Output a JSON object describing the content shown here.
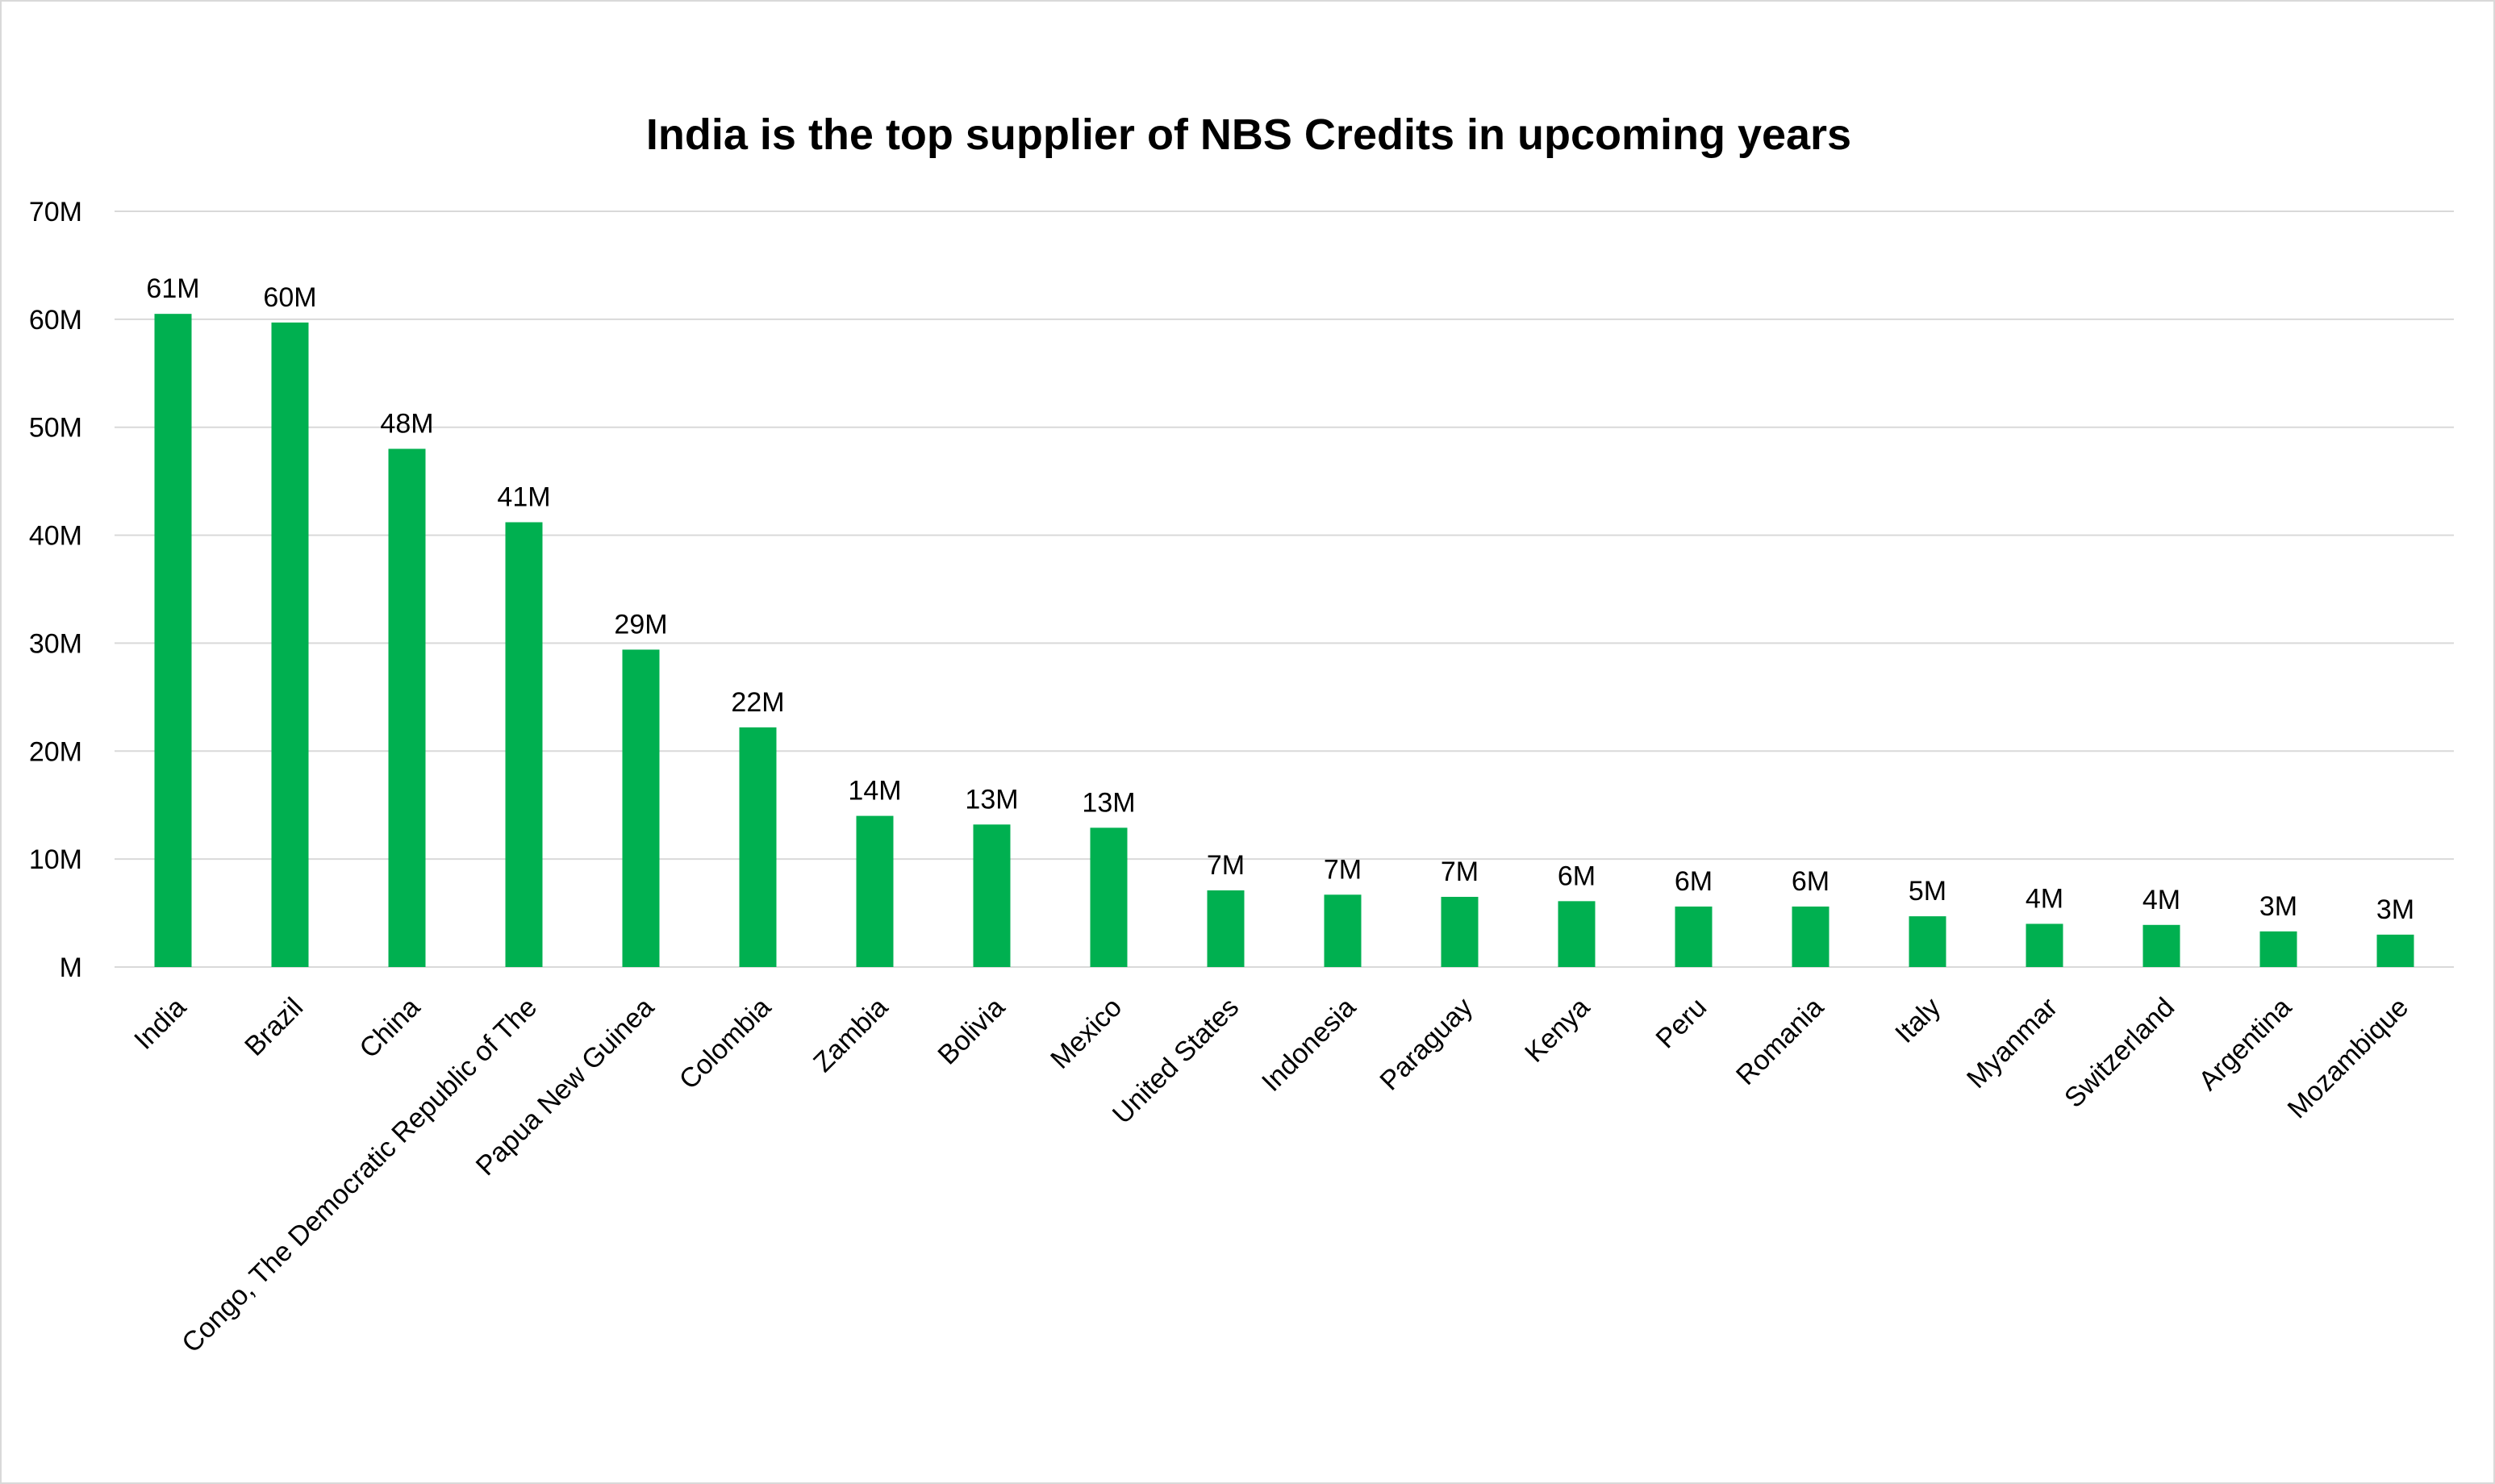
{
  "chart_data": {
    "type": "bar",
    "title": "India is the top supplier of NBS Credits in upcoming years",
    "xlabel": "",
    "ylabel": "",
    "ylim": [
      0,
      70
    ],
    "y_ticks": [
      {
        "value": 0,
        "label": "M"
      },
      {
        "value": 10,
        "label": "10M"
      },
      {
        "value": 20,
        "label": "20M"
      },
      {
        "value": 30,
        "label": "30M"
      },
      {
        "value": 40,
        "label": "40M"
      },
      {
        "value": 50,
        "label": "50M"
      },
      {
        "value": 60,
        "label": "60M"
      },
      {
        "value": 70,
        "label": "70M"
      }
    ],
    "grid": true,
    "legend": "none",
    "bar_color": "#00b050",
    "categories": [
      "India",
      "Brazil",
      "China",
      "Congo, The Democratic Republic of The",
      "Papua New Guinea",
      "Colombia",
      "Zambia",
      "Bolivia",
      "Mexico",
      "United States",
      "Indonesia",
      "Paraguay",
      "Kenya",
      "Peru",
      "Romania",
      "Italy",
      "Myanmar",
      "Switzerland",
      "Argentina",
      "Mozambique"
    ],
    "values": [
      60.5,
      59.7,
      48.0,
      41.2,
      29.4,
      22.2,
      14.0,
      13.2,
      12.9,
      7.1,
      6.7,
      6.5,
      6.1,
      5.6,
      5.6,
      4.7,
      4.0,
      3.9,
      3.3,
      3.0
    ],
    "data_labels": [
      "61M",
      "60M",
      "48M",
      "41M",
      "29M",
      "22M",
      "14M",
      "13M",
      "13M",
      "7M",
      "7M",
      "7M",
      "6M",
      "6M",
      "6M",
      "5M",
      "4M",
      "4M",
      "3M",
      "3M"
    ]
  }
}
